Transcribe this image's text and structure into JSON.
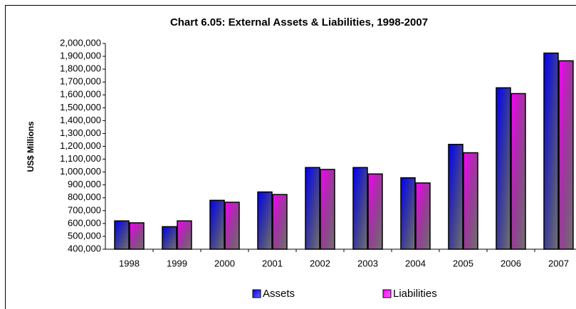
{
  "chart_data": {
    "type": "bar",
    "title": "Chart 6.05: External Assets & Liabilities, 1998-2007",
    "y_label": "US$ Millions",
    "categories": [
      "1998",
      "1999",
      "2000",
      "2001",
      "2002",
      "2003",
      "2004",
      "2005",
      "2006",
      "2007"
    ],
    "series": [
      {
        "name": "Assets",
        "color": "#0000ff",
        "values": [
          620000,
          575000,
          780000,
          845000,
          1035000,
          1035000,
          955000,
          1215000,
          1655000,
          1925000
        ]
      },
      {
        "name": "Liabilities",
        "color": "#ff00ff",
        "values": [
          605000,
          620000,
          765000,
          825000,
          1020000,
          985000,
          915000,
          1150000,
          1610000,
          1865000
        ]
      }
    ],
    "ylim": [
      400000,
      2000000
    ],
    "yticks": [
      {
        "value": 400000,
        "label": "400,000"
      },
      {
        "value": 500000,
        "label": "500,000"
      },
      {
        "value": 600000,
        "label": "600,000"
      },
      {
        "value": 700000,
        "label": "700,000"
      },
      {
        "value": 800000,
        "label": "800,000"
      },
      {
        "value": 900000,
        "label": "900,000"
      },
      {
        "value": 1000000,
        "label": "1,000,000"
      },
      {
        "value": 1100000,
        "label": "1,100,000"
      },
      {
        "value": 1200000,
        "label": "1,200,000"
      },
      {
        "value": 1300000,
        "label": "1,300,000"
      },
      {
        "value": 1400000,
        "label": "1,400,000"
      },
      {
        "value": 1500000,
        "label": "1,500,000"
      },
      {
        "value": 1600000,
        "label": "1,600,000"
      },
      {
        "value": 1700000,
        "label": "1,700,000"
      },
      {
        "value": 1800000,
        "label": "1,800,000"
      },
      {
        "value": 1900000,
        "label": "1,900,000"
      },
      {
        "value": 2000000,
        "label": "2,000,000"
      }
    ],
    "grid": false
  }
}
